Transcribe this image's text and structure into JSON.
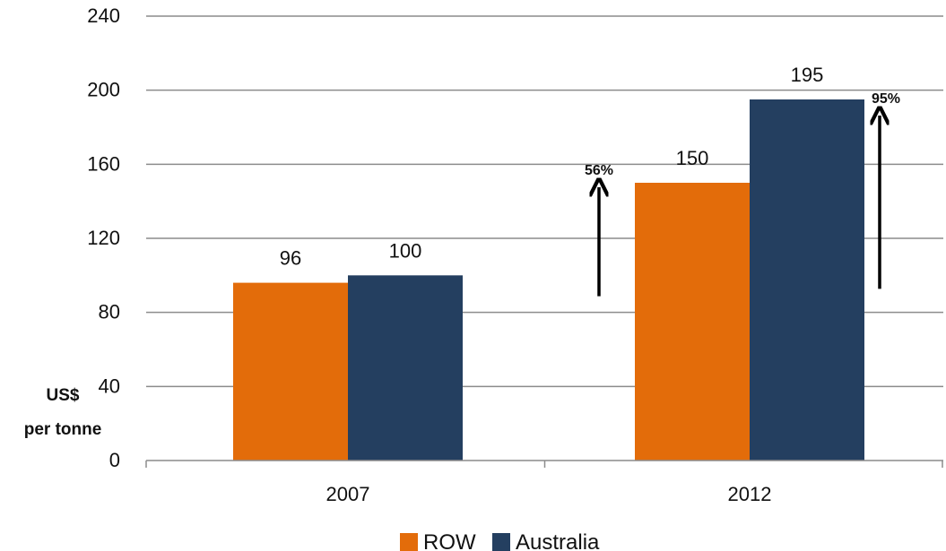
{
  "chart_data": {
    "type": "bar",
    "categories": [
      "2007",
      "2012"
    ],
    "series": [
      {
        "name": "ROW",
        "color": "#e36c0a",
        "values": [
          96,
          150
        ]
      },
      {
        "name": "Australia",
        "color": "#243f60",
        "values": [
          100,
          195
        ]
      }
    ],
    "ylim": [
      0,
      240
    ],
    "yticks": [
      0,
      40,
      80,
      120,
      160,
      200,
      240
    ],
    "ylabel_lines": [
      "US$",
      "per tonne"
    ],
    "xlabel": "",
    "grid": true,
    "legend_position": "bottom",
    "annotations": [
      {
        "text": "56%",
        "series": "ROW",
        "category": "2012",
        "arrow_from": 96,
        "arrow_to": 150
      },
      {
        "text": "95%",
        "series": "Australia",
        "category": "2012",
        "arrow_from": 100,
        "arrow_to": 195
      }
    ]
  }
}
